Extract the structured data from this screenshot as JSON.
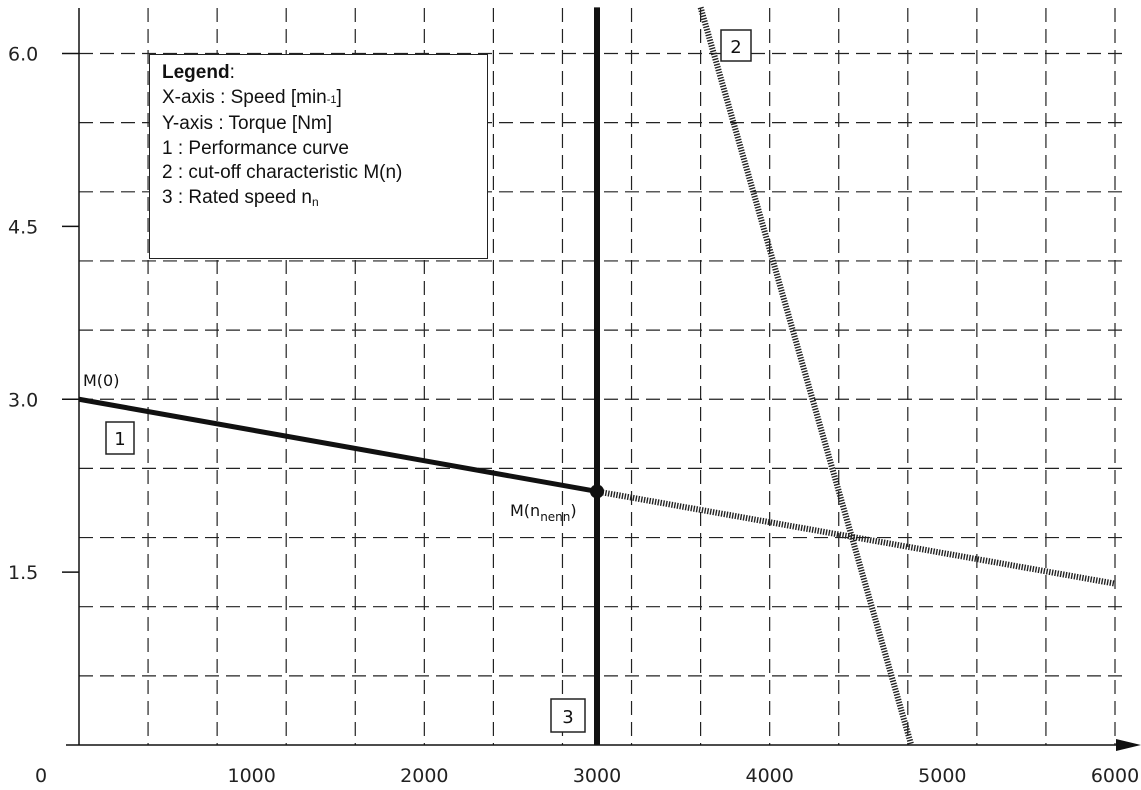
{
  "chart_data": {
    "type": "line",
    "xlim": [
      0,
      6000
    ],
    "ylim": [
      0,
      6.3
    ],
    "x_ticks": [
      "0",
      "1000",
      "2000",
      "3000",
      "4000",
      "5000",
      "6000"
    ],
    "y_ticks": [
      "1.5",
      "3.0",
      "4.5",
      "6.0"
    ],
    "grid": true,
    "series": [
      {
        "label": "1",
        "style": "solid",
        "x": [
          0,
          3000
        ],
        "y": [
          3.0,
          2.2
        ]
      },
      {
        "label": "1",
        "style": "dotted",
        "x": [
          3000,
          6000
        ],
        "y": [
          2.2,
          1.4
        ]
      },
      {
        "label": "2",
        "style": "dotted",
        "x": [
          3600,
          4820
        ],
        "y": [
          6.4,
          0
        ]
      },
      {
        "label": "3",
        "style": "solid",
        "x": [
          3000,
          3000
        ],
        "y": [
          0,
          6.4
        ]
      }
    ],
    "points": [
      {
        "label": "M(0)",
        "x": 0,
        "y": 3.0
      },
      {
        "label": "M(n_nenn)",
        "x": 3000,
        "y": 2.2
      }
    ],
    "annotations": {
      "m0": "M(0)",
      "mn_main": "M(n",
      "mn_sub": "nenn",
      "mn_close": ")"
    },
    "box_labels": [
      "1",
      "2",
      "3"
    ],
    "legend": {
      "title": "Legend",
      "title_suffix": ":",
      "x_axis_pre": "X-axis : Speed [min",
      "x_axis_sup": "-1",
      "x_axis_post": "]",
      "y_axis": "Y-axis : Torque [Nm]",
      "item1": "1 : Performance curve",
      "item2": "2 : cut-off characteristic M(n)",
      "item3_pre": "3 : Rated speed n",
      "item3_sub": "n"
    }
  }
}
